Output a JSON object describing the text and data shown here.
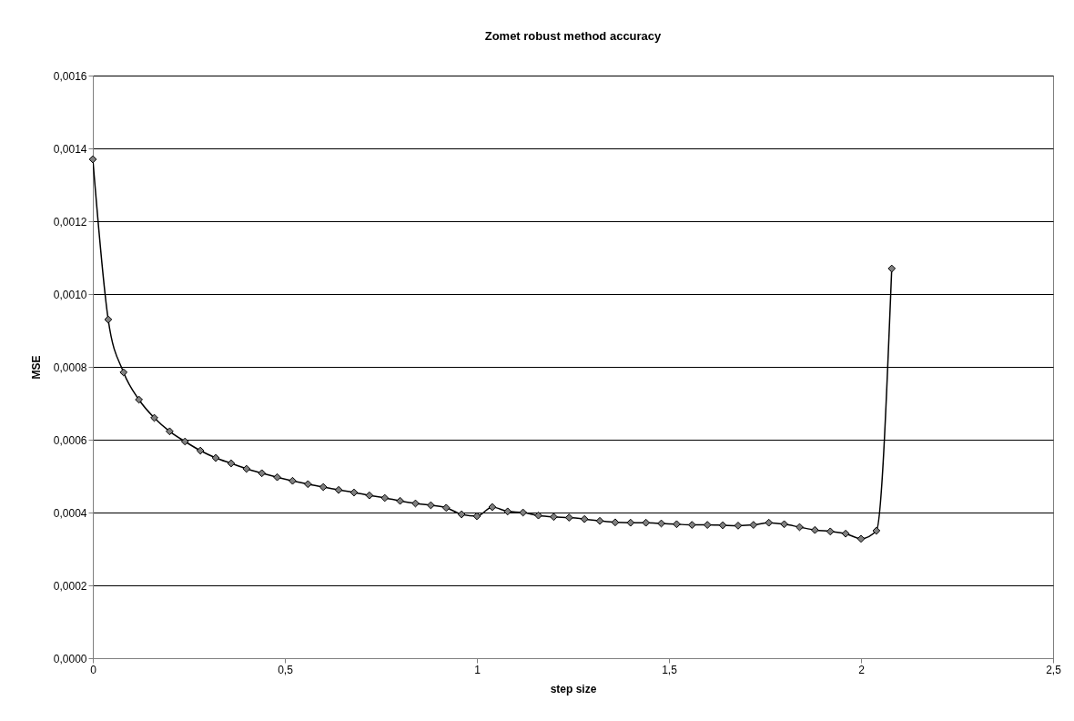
{
  "chart_data": {
    "type": "line",
    "title": "Zomet robust method accuracy",
    "xlabel": "step size",
    "ylabel": "MSE",
    "x": [
      0,
      0.04,
      0.08,
      0.12,
      0.16,
      0.2,
      0.24,
      0.28,
      0.32,
      0.36,
      0.4,
      0.44,
      0.48,
      0.52,
      0.56,
      0.6,
      0.64,
      0.68,
      0.72,
      0.76,
      0.8,
      0.84,
      0.88,
      0.92,
      0.96,
      1,
      1.04,
      1.08,
      1.12,
      1.16,
      1.2,
      1.24,
      1.28,
      1.32,
      1.36,
      1.4,
      1.44,
      1.48,
      1.52,
      1.56,
      1.6,
      1.64,
      1.68,
      1.72,
      1.76,
      1.8,
      1.84,
      1.88,
      1.92,
      1.96,
      2,
      2.04,
      2.08
    ],
    "values": [
      0.00137,
      0.00093,
      0.000785,
      0.00071,
      0.00066,
      0.000623,
      0.000595,
      0.00057,
      0.00055,
      0.000535,
      0.00052,
      0.000508,
      0.000497,
      0.000487,
      0.000478,
      0.00047,
      0.000462,
      0.000455,
      0.000447,
      0.00044,
      0.000432,
      0.000425,
      0.00042,
      0.000413,
      0.000395,
      0.00039,
      0.000415,
      0.000403,
      0.0004,
      0.000392,
      0.000388,
      0.000386,
      0.000382,
      0.000377,
      0.000373,
      0.000372,
      0.000372,
      0.00037,
      0.000368,
      0.000366,
      0.000366,
      0.000365,
      0.000364,
      0.000366,
      0.000372,
      0.000368,
      0.00036,
      0.000352,
      0.000348,
      0.000342,
      0.000328,
      0.00035,
      0.00107
    ],
    "color": "#000000",
    "marker": "diamond",
    "line_style": "solid",
    "grid": "y",
    "xlim": [
      0,
      2.5
    ],
    "xticks": [
      0,
      {
        "value": 0.5,
        "label": "0,5"
      },
      1,
      {
        "value": 1.5,
        "label": "1,5"
      },
      2,
      {
        "value": 2.5,
        "label": "2,5"
      }
    ],
    "ylim": [
      0,
      0.0016
    ],
    "yticks": [
      {
        "value": 0,
        "label": "0,0000"
      },
      {
        "value": 0.0002,
        "label": "0,0002"
      },
      {
        "value": 0.0004,
        "label": "0,0004"
      },
      {
        "value": 0.0006,
        "label": "0,0006"
      },
      {
        "value": 0.0008,
        "label": "0,0008"
      },
      {
        "value": 0.001,
        "label": "0,0010"
      },
      {
        "value": 0.0012,
        "label": "0,0012"
      },
      {
        "value": 0.0014,
        "label": "0,0014"
      },
      {
        "value": 0.0016,
        "label": "0,0016"
      }
    ]
  }
}
